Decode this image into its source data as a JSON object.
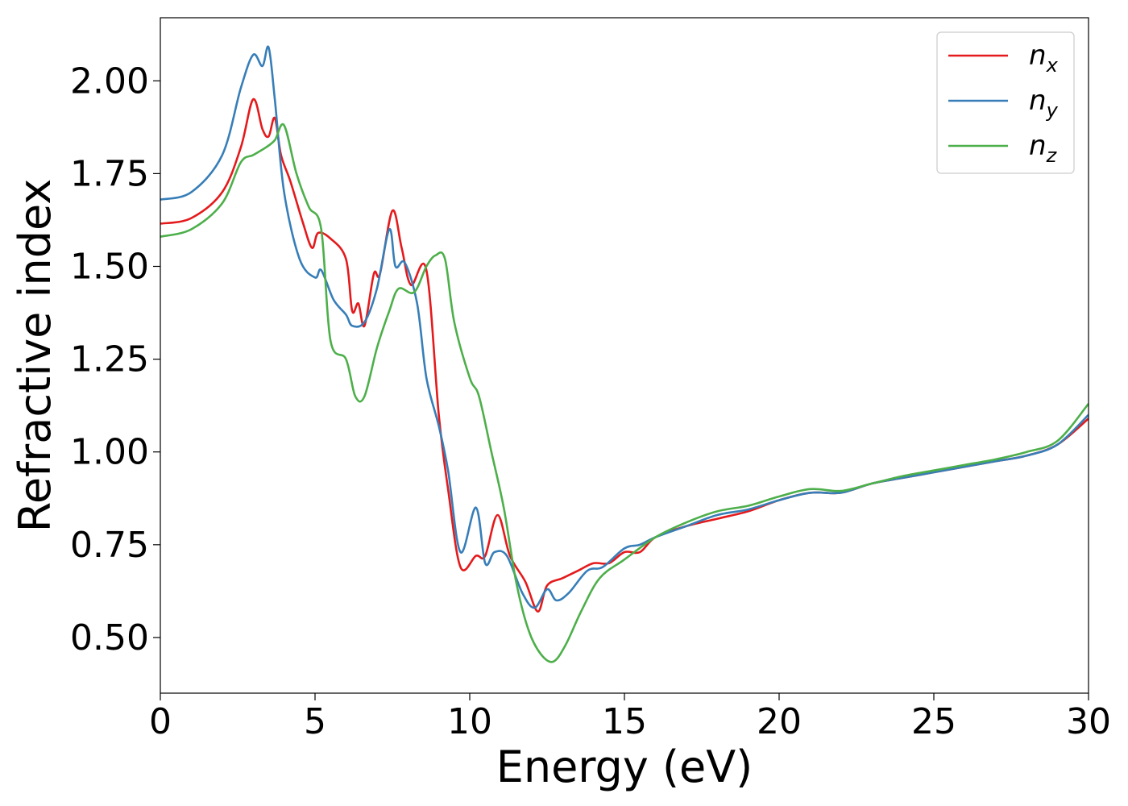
{
  "chart_data": {
    "type": "line",
    "xlabel": "Energy (eV)",
    "ylabel": "Refractive index",
    "xlim": [
      0,
      30
    ],
    "ylim": [
      0.35,
      2.17
    ],
    "xticks": [
      0,
      5,
      10,
      15,
      20,
      25,
      30
    ],
    "xtick_labels": [
      "0",
      "5",
      "10",
      "15",
      "20",
      "25",
      "30"
    ],
    "yticks": [
      0.5,
      0.75,
      1.0,
      1.25,
      1.5,
      1.75,
      2.0
    ],
    "ytick_labels": [
      "0.50",
      "0.75",
      "1.00",
      "1.25",
      "1.50",
      "1.75",
      "2.00"
    ],
    "grid": false,
    "legend_position": "top-right",
    "series": [
      {
        "name": "n",
        "subscript": "x",
        "color": "#e41a1c",
        "points": [
          [
            0,
            1.615
          ],
          [
            1,
            1.63
          ],
          [
            2,
            1.7
          ],
          [
            2.6,
            1.82
          ],
          [
            3,
            1.95
          ],
          [
            3.3,
            1.87
          ],
          [
            3.5,
            1.85
          ],
          [
            3.7,
            1.9
          ],
          [
            3.9,
            1.8
          ],
          [
            4.2,
            1.73
          ],
          [
            4.6,
            1.62
          ],
          [
            4.9,
            1.55
          ],
          [
            5.1,
            1.59
          ],
          [
            5.5,
            1.575
          ],
          [
            6,
            1.52
          ],
          [
            6.2,
            1.38
          ],
          [
            6.4,
            1.4
          ],
          [
            6.6,
            1.34
          ],
          [
            6.9,
            1.48
          ],
          [
            7.1,
            1.48
          ],
          [
            7.5,
            1.65
          ],
          [
            7.8,
            1.55
          ],
          [
            8.1,
            1.45
          ],
          [
            8.6,
            1.49
          ],
          [
            9.0,
            1.1
          ],
          [
            9.3,
            0.9
          ],
          [
            9.7,
            0.69
          ],
          [
            10.2,
            0.72
          ],
          [
            10.5,
            0.72
          ],
          [
            10.9,
            0.83
          ],
          [
            11.3,
            0.72
          ],
          [
            11.8,
            0.65
          ],
          [
            12.2,
            0.57
          ],
          [
            12.5,
            0.64
          ],
          [
            13,
            0.66
          ],
          [
            13.5,
            0.68
          ],
          [
            14,
            0.7
          ],
          [
            14.5,
            0.7
          ],
          [
            15,
            0.73
          ],
          [
            15.5,
            0.73
          ],
          [
            16,
            0.77
          ],
          [
            17,
            0.8
          ],
          [
            18,
            0.82
          ],
          [
            19,
            0.84
          ],
          [
            20,
            0.87
          ],
          [
            21,
            0.89
          ],
          [
            22,
            0.89
          ],
          [
            23,
            0.915
          ],
          [
            24,
            0.93
          ],
          [
            25,
            0.945
          ],
          [
            26,
            0.96
          ],
          [
            27,
            0.975
          ],
          [
            28,
            0.99
          ],
          [
            29,
            1.02
          ],
          [
            30,
            1.09
          ]
        ]
      },
      {
        "name": "n",
        "subscript": "y",
        "color": "#377eb8",
        "points": [
          [
            0,
            1.68
          ],
          [
            1,
            1.7
          ],
          [
            2,
            1.8
          ],
          [
            2.6,
            1.98
          ],
          [
            3,
            2.07
          ],
          [
            3.3,
            2.04
          ],
          [
            3.5,
            2.09
          ],
          [
            3.7,
            1.95
          ],
          [
            4,
            1.7
          ],
          [
            4.5,
            1.52
          ],
          [
            5,
            1.47
          ],
          [
            5.2,
            1.49
          ],
          [
            5.6,
            1.41
          ],
          [
            6,
            1.37
          ],
          [
            6.2,
            1.34
          ],
          [
            6.6,
            1.35
          ],
          [
            7,
            1.44
          ],
          [
            7.4,
            1.6
          ],
          [
            7.6,
            1.5
          ],
          [
            7.9,
            1.51
          ],
          [
            8.3,
            1.4
          ],
          [
            8.6,
            1.2
          ],
          [
            9.0,
            1.07
          ],
          [
            9.3,
            0.95
          ],
          [
            9.7,
            0.73
          ],
          [
            10.2,
            0.85
          ],
          [
            10.5,
            0.7
          ],
          [
            10.8,
            0.73
          ],
          [
            11.2,
            0.72
          ],
          [
            11.7,
            0.62
          ],
          [
            12.1,
            0.58
          ],
          [
            12.5,
            0.63
          ],
          [
            12.8,
            0.6
          ],
          [
            13.2,
            0.62
          ],
          [
            13.8,
            0.68
          ],
          [
            14.3,
            0.69
          ],
          [
            15,
            0.74
          ],
          [
            15.5,
            0.75
          ],
          [
            16,
            0.77
          ],
          [
            17,
            0.8
          ],
          [
            18,
            0.83
          ],
          [
            19,
            0.845
          ],
          [
            20,
            0.87
          ],
          [
            21,
            0.89
          ],
          [
            22,
            0.89
          ],
          [
            23,
            0.915
          ],
          [
            24,
            0.93
          ],
          [
            25,
            0.945
          ],
          [
            26,
            0.96
          ],
          [
            27,
            0.975
          ],
          [
            28,
            0.99
          ],
          [
            29,
            1.02
          ],
          [
            30,
            1.1
          ]
        ]
      },
      {
        "name": "n",
        "subscript": "z",
        "color": "#4daf4a",
        "points": [
          [
            0,
            1.58
          ],
          [
            1,
            1.6
          ],
          [
            2,
            1.67
          ],
          [
            2.6,
            1.78
          ],
          [
            3,
            1.8
          ],
          [
            3.4,
            1.82
          ],
          [
            3.7,
            1.84
          ],
          [
            4,
            1.88
          ],
          [
            4.4,
            1.75
          ],
          [
            4.8,
            1.66
          ],
          [
            5.2,
            1.6
          ],
          [
            5.5,
            1.3
          ],
          [
            6,
            1.25
          ],
          [
            6.3,
            1.15
          ],
          [
            6.6,
            1.15
          ],
          [
            7,
            1.28
          ],
          [
            7.4,
            1.38
          ],
          [
            7.7,
            1.44
          ],
          [
            8.2,
            1.43
          ],
          [
            8.6,
            1.5
          ],
          [
            8.9,
            1.53
          ],
          [
            9.2,
            1.52
          ],
          [
            9.5,
            1.35
          ],
          [
            10,
            1.2
          ],
          [
            10.3,
            1.15
          ],
          [
            10.7,
            1.0
          ],
          [
            11.1,
            0.85
          ],
          [
            11.5,
            0.65
          ],
          [
            11.9,
            0.52
          ],
          [
            12.3,
            0.455
          ],
          [
            12.7,
            0.435
          ],
          [
            13.1,
            0.48
          ],
          [
            13.6,
            0.57
          ],
          [
            14.2,
            0.66
          ],
          [
            15,
            0.71
          ],
          [
            16,
            0.77
          ],
          [
            17,
            0.81
          ],
          [
            18,
            0.84
          ],
          [
            19,
            0.855
          ],
          [
            20,
            0.88
          ],
          [
            21,
            0.9
          ],
          [
            22,
            0.895
          ],
          [
            23,
            0.915
          ],
          [
            24,
            0.935
          ],
          [
            25,
            0.95
          ],
          [
            26,
            0.965
          ],
          [
            27,
            0.98
          ],
          [
            28,
            1.0
          ],
          [
            29,
            1.03
          ],
          [
            30,
            1.13
          ]
        ]
      }
    ]
  }
}
